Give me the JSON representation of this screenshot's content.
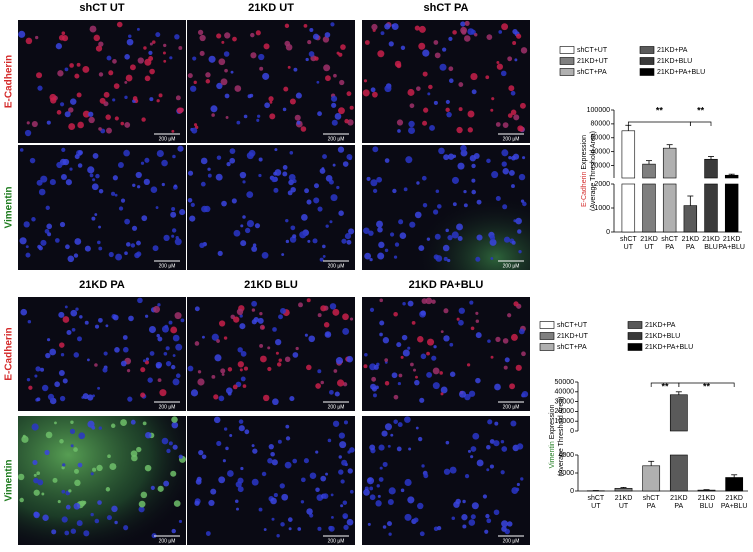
{
  "figure": {
    "blocks": [
      {
        "columns": [
          "shCT UT",
          "21KD UT",
          "shCT PA"
        ]
      },
      {
        "columns": [
          "21KD PA",
          "21KD BLU",
          "21KD PA+BLU"
        ]
      }
    ],
    "rows": [
      {
        "label": "E-Cadherin",
        "color": "#d42a2a"
      },
      {
        "label": "Vimentin",
        "color": "#1e7b1e"
      }
    ],
    "scale_bar": "200 µM"
  },
  "chart_data": [
    {
      "type": "bar",
      "legend": [
        {
          "name": "shCT+UT",
          "color": "#ffffff"
        },
        {
          "name": "21KD+UT",
          "color": "#7f7f7f"
        },
        {
          "name": "shCT+PA",
          "color": "#b0b0b0"
        },
        {
          "name": "21KD+PA",
          "color": "#5a5a5a"
        },
        {
          "name": "21KD+BLU",
          "color": "#3a3a3a"
        },
        {
          "name": "21KD+PA+BLU",
          "color": "#000000"
        }
      ],
      "categories": [
        [
          "shCT",
          "UT"
        ],
        [
          "21KD",
          "UT"
        ],
        [
          "shCT",
          "PA"
        ],
        [
          "21KD",
          "PA"
        ],
        [
          "21KD",
          "BLU"
        ],
        [
          "21KD",
          "PA+BLU"
        ]
      ],
      "values": [
        70000,
        22000,
        45000,
        1100,
        29000,
        6000
      ],
      "errors": [
        8000,
        5000,
        5000,
        400,
        4000,
        1500
      ],
      "axis_segments": [
        {
          "ylim": [
            0,
            2000
          ],
          "yticks": [
            0,
            1000,
            2000
          ]
        },
        {
          "ylim": [
            2000,
            100000
          ],
          "yticks": [
            20000,
            40000,
            60000,
            80000,
            100000
          ]
        }
      ],
      "ylabel": {
        "highlight": "E-Cadherin",
        "highlight_color": "#d42a2a",
        "text": "Expression",
        "subtext": "(Average Threshold Area)"
      },
      "annotations": [
        "**",
        "**"
      ]
    },
    {
      "type": "bar",
      "legend": [
        {
          "name": "shCT+UT",
          "color": "#ffffff"
        },
        {
          "name": "21KD+UT",
          "color": "#7f7f7f"
        },
        {
          "name": "shCT+PA",
          "color": "#b0b0b0"
        },
        {
          "name": "21KD+PA",
          "color": "#5a5a5a"
        },
        {
          "name": "21KD+BLU",
          "color": "#3a3a3a"
        },
        {
          "name": "21KD+PA+BLU",
          "color": "#000000"
        }
      ],
      "categories": [
        [
          "shCT",
          "UT"
        ],
        [
          "21KD",
          "UT"
        ],
        [
          "shCT",
          "PA"
        ],
        [
          "21KD",
          "PA"
        ],
        [
          "21KD",
          "BLU"
        ],
        [
          "21KD",
          "PA+BLU"
        ]
      ],
      "values": [
        30,
        300,
        2800,
        37000,
        100,
        1500
      ],
      "errors": [
        20,
        100,
        500,
        3000,
        50,
        300
      ],
      "axis_segments": [
        {
          "ylim": [
            0,
            4000
          ],
          "yticks": [
            0,
            2000,
            4000
          ]
        },
        {
          "ylim": [
            0,
            50000
          ],
          "yticks": [
            0,
            10000,
            20000,
            30000,
            40000,
            50000
          ]
        }
      ],
      "ylabel": {
        "highlight": "Vimentin",
        "highlight_color": "#1e7b1e",
        "text": "Expression",
        "subtext": "(Average Threshold Area)"
      },
      "annotations": [
        "**",
        "**"
      ]
    }
  ]
}
